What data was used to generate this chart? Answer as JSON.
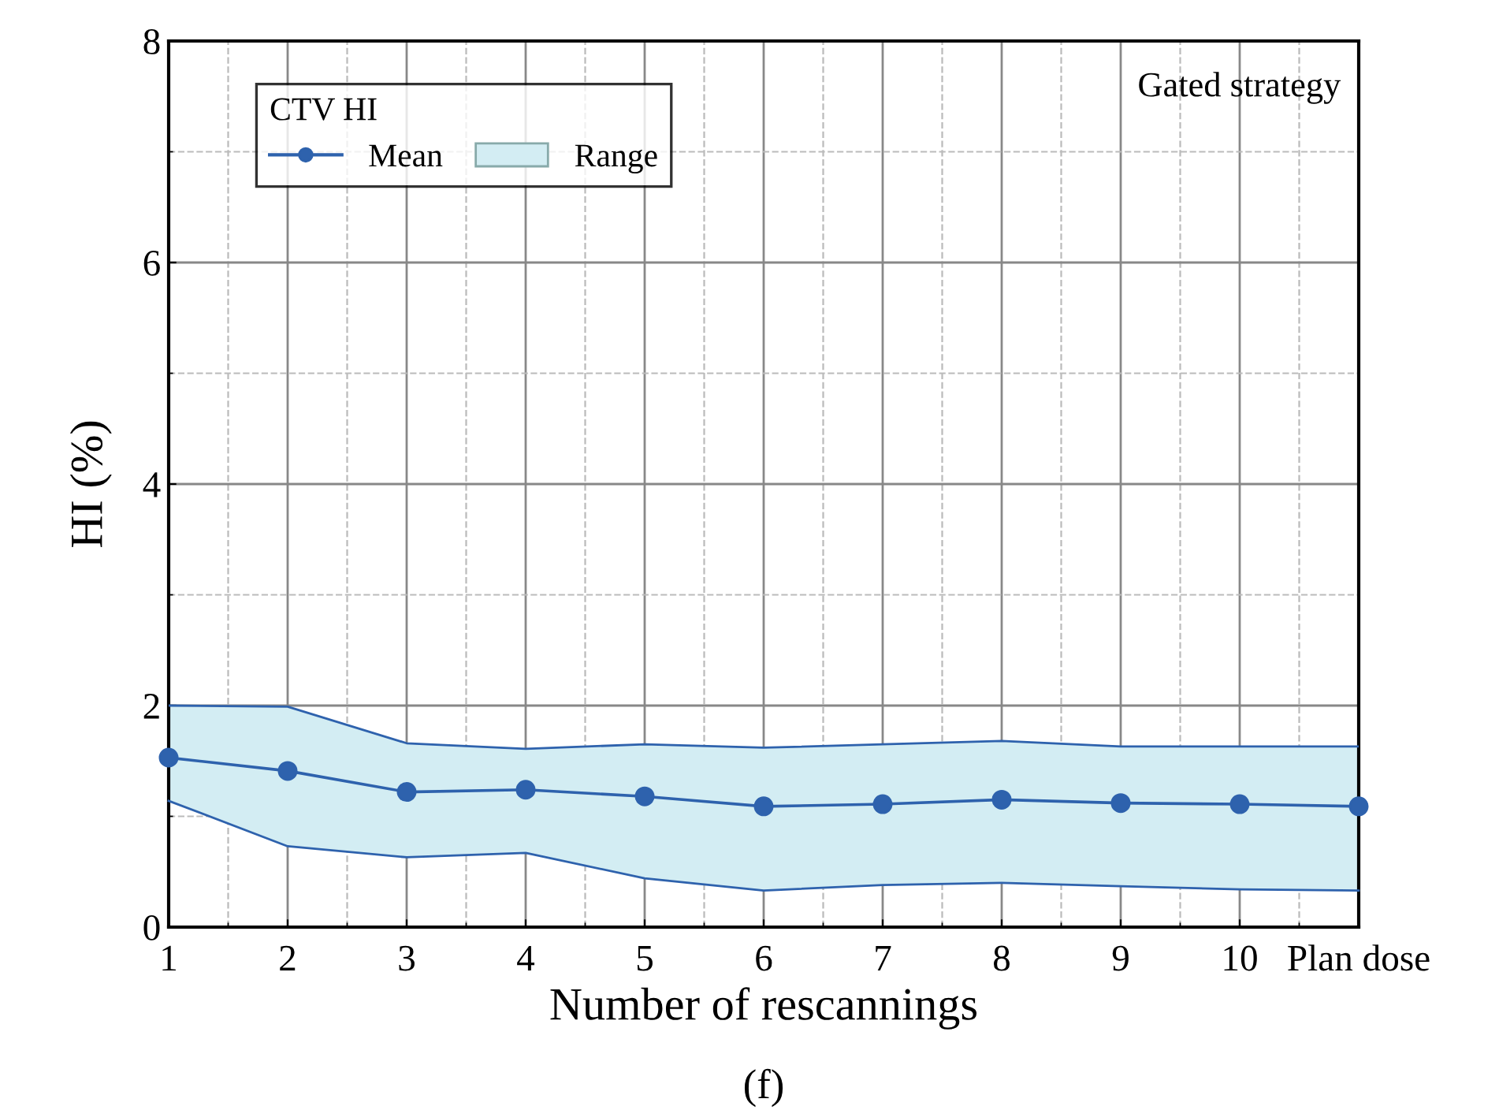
{
  "chart_data": {
    "type": "line",
    "xlabel": "Number of rescannings",
    "ylabel": "HI (%)",
    "categories": [
      "1",
      "2",
      "3",
      "4",
      "5",
      "6",
      "7",
      "8",
      "9",
      "10",
      "Plan dose"
    ],
    "ylim": [
      0,
      8
    ],
    "yticks": [
      0,
      2,
      4,
      6,
      8
    ],
    "grid": true,
    "legend": "top left",
    "legend_title": "CTV HI",
    "marker": "circle",
    "line_style": "solid",
    "series": [
      {
        "name": "Mean",
        "color": "#2e62ad",
        "values": [
          1.53,
          1.41,
          1.22,
          1.24,
          1.18,
          1.09,
          1.11,
          1.15,
          1.12,
          1.11,
          1.09
        ]
      },
      {
        "name": "Range",
        "type": "area",
        "color": "#d3edf3",
        "marker": "none",
        "values": [
          2.0,
          1.99,
          1.66,
          1.61,
          1.65,
          1.62,
          1.65,
          1.68,
          1.63,
          1.63,
          1.63
        ]
      },
      {
        "type": "line",
        "color": "#2e62ad",
        "marker": "none",
        "values": [
          1.14,
          0.73,
          0.63,
          0.67,
          0.44,
          0.33,
          0.38,
          0.4,
          0.37,
          0.34,
          0.33
        ]
      }
    ],
    "annotations": [
      "Gated strategy",
      "(f)"
    ]
  }
}
